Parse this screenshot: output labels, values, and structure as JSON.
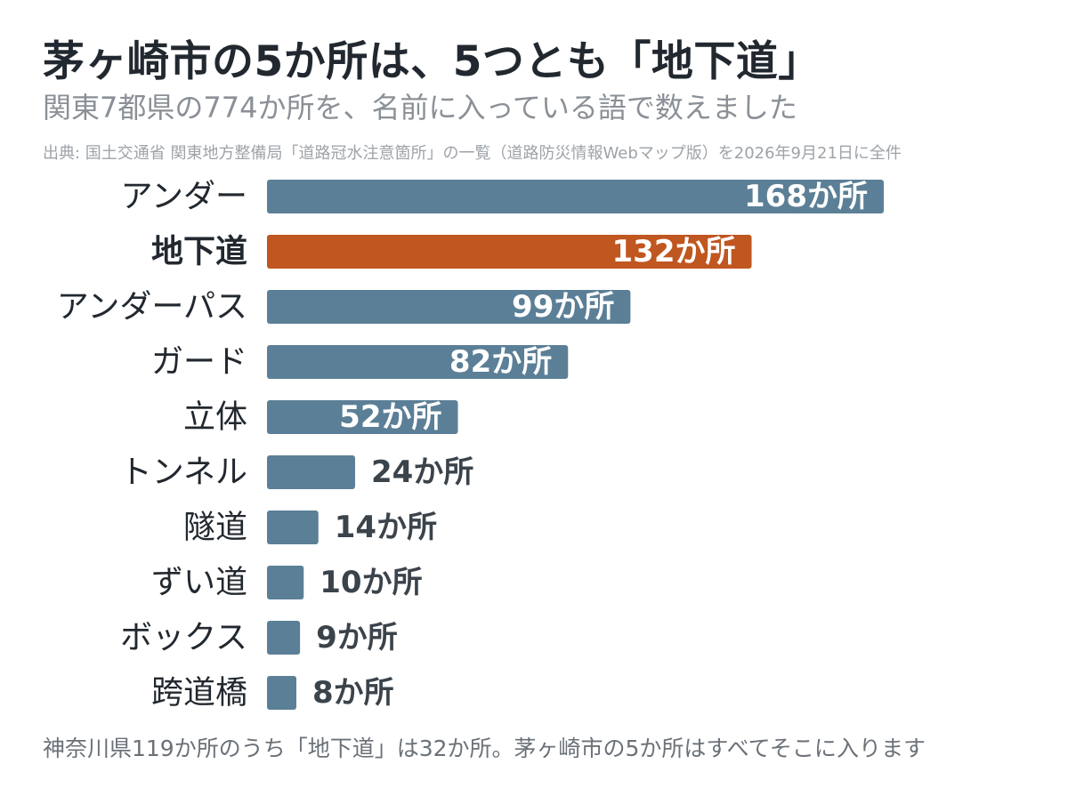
{
  "title": "茅ヶ崎市の5か所は、5つとも「地下道」",
  "subtitle": "関東7都県の774か所を、名前に入っている語で数えました",
  "source": "出典: 国土交通省 関東地方整備局「道路冠水注意箇所」の一覧（道路防災情報Webマップ版）を2026年9月21日に全件",
  "footer": "神奈川県119か所のうち「地下道」は32か所。茅ヶ崎市の5か所はすべてそこに入ります",
  "colors": {
    "bar": "#5b7f96",
    "highlight": "#c05620",
    "label_inside": "#ffffff",
    "label_outside": "#3b434b",
    "category": "#22282f"
  },
  "chart_data": {
    "type": "bar",
    "orientation": "horizontal",
    "categories": [
      "アンダー",
      "地下道",
      "アンダーパス",
      "ガード",
      "立体",
      "トンネル",
      "隧道",
      "ずい道",
      "ボックス",
      "跨道橋"
    ],
    "values": [
      168,
      132,
      99,
      82,
      52,
      24,
      14,
      10,
      9,
      8
    ],
    "value_labels": [
      "168か所",
      "132か所",
      "99か所",
      "82か所",
      "52か所",
      "24か所",
      "14か所",
      "10か所",
      "9か所",
      "8か所"
    ],
    "highlight": "地下道",
    "xlim": [
      0,
      168
    ],
    "grid": false,
    "legend": "none"
  }
}
